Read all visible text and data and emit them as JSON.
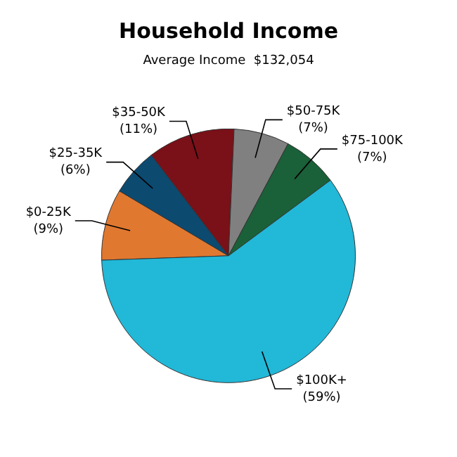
{
  "chart_data": {
    "type": "pie",
    "title": "Household Income",
    "subtitle": "Average Income  $132,054",
    "categories": [
      "$0-25K",
      "$25-35K",
      "$35-50K",
      "$50-75K",
      "$75-100K",
      "$100K+"
    ],
    "values": [
      9,
      6,
      11,
      7,
      7,
      59
    ],
    "value_labels": [
      "(9%)",
      "(6%)",
      "(11%)",
      "(7%)",
      "(7%)",
      "(59%)"
    ],
    "colors": [
      "#e07830",
      "#0c4a70",
      "#7a1018",
      "#808080",
      "#1a6038",
      "#22b8d8"
    ],
    "legend": false
  }
}
